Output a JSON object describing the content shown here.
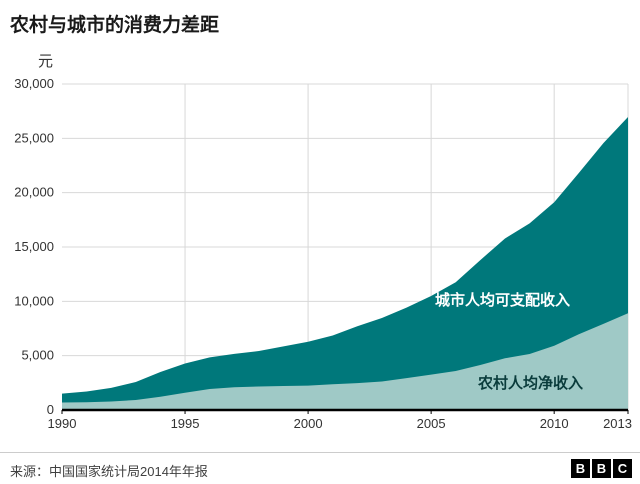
{
  "chart_data": {
    "type": "area",
    "title": "农村与城市的消费力差距",
    "ylabel": "元",
    "xlabel": "",
    "ylim": [
      0,
      30000
    ],
    "yticks": [
      0,
      5000,
      10000,
      15000,
      20000,
      25000,
      30000
    ],
    "xticks": [
      1990,
      1995,
      2000,
      2005,
      2010,
      2013
    ],
    "x": [
      1990,
      1991,
      1992,
      1993,
      1994,
      1995,
      1996,
      1997,
      1998,
      1999,
      2000,
      2001,
      2002,
      2003,
      2004,
      2005,
      2006,
      2007,
      2008,
      2009,
      2010,
      2011,
      2012,
      2013
    ],
    "series": [
      {
        "name": "城市人均可支配收入",
        "color": "#00787b",
        "values": [
          1510,
          1700,
          2030,
          2580,
          3500,
          4280,
          4840,
          5160,
          5430,
          5850,
          6280,
          6860,
          7700,
          8470,
          9420,
          10490,
          11760,
          13790,
          15780,
          17170,
          19110,
          21810,
          24560,
          26960
        ]
      },
      {
        "name": "农村人均净收入",
        "color": "#9fc9c6",
        "values": [
          690,
          710,
          780,
          920,
          1220,
          1580,
          1930,
          2090,
          2160,
          2210,
          2250,
          2370,
          2480,
          2620,
          2940,
          3260,
          3590,
          4140,
          4760,
          5150,
          5920,
          6980,
          7920,
          8900
        ]
      }
    ],
    "legend_position": "inside-area-labels",
    "grid": "on"
  },
  "source": "来源：中国国家统计局2014年年报",
  "logo": {
    "blocks": [
      "B",
      "B",
      "C"
    ]
  }
}
